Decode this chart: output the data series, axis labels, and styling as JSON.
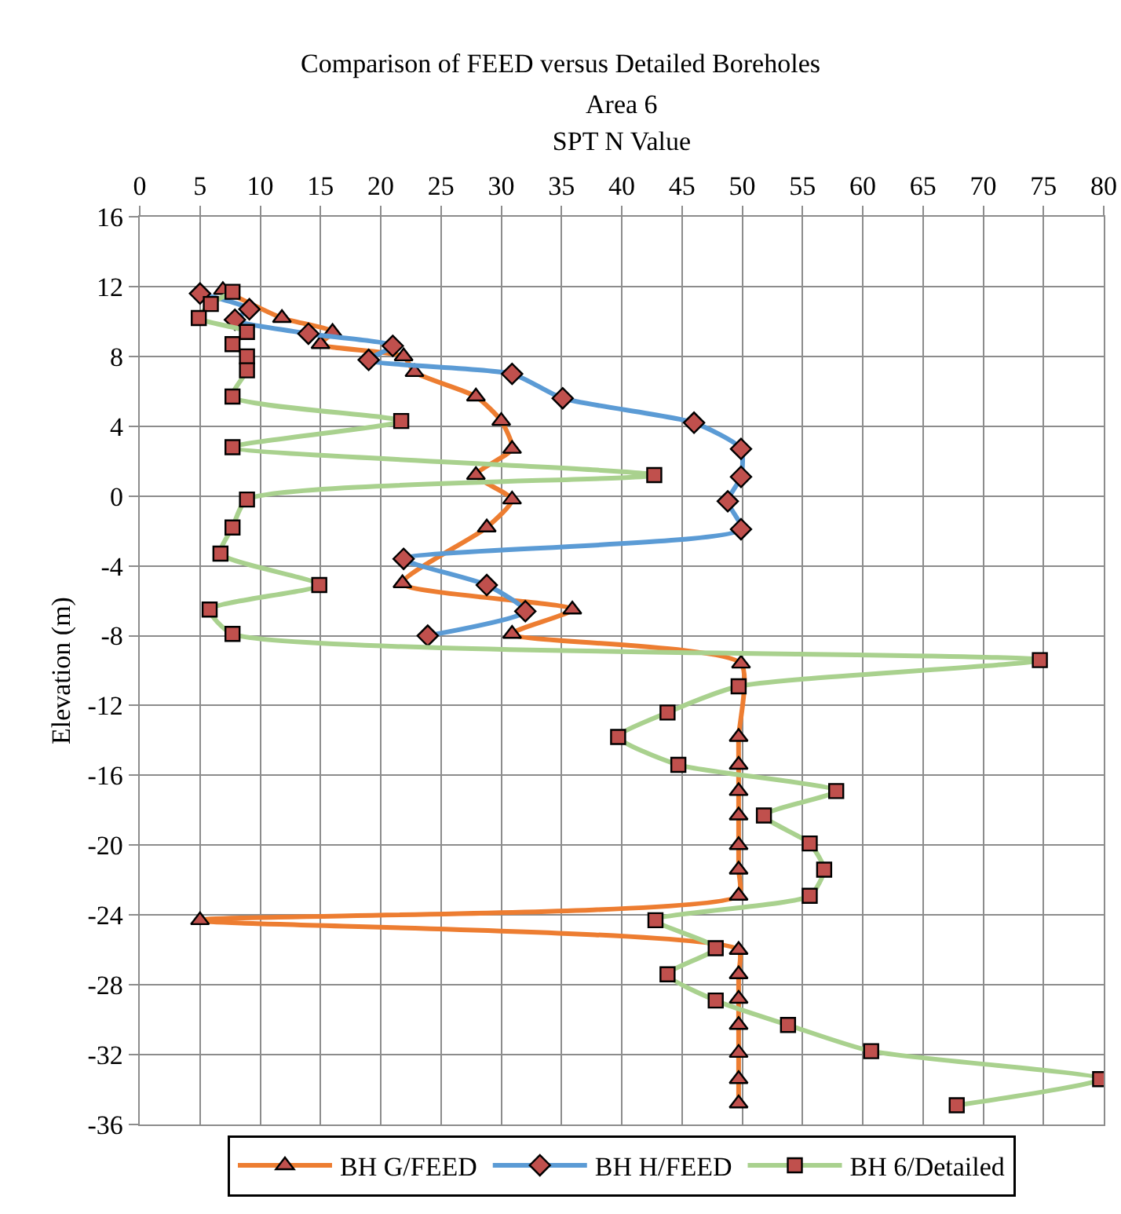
{
  "chart_data": {
    "type": "line",
    "title": "Comparison of FEED versus Detailed Boreholes",
    "subtitle": "Area 6",
    "xlabel": "SPT N Value",
    "ylabel": "Elevation (m)",
    "xlim": [
      0,
      80
    ],
    "xticks": [
      0,
      5,
      10,
      15,
      20,
      25,
      30,
      35,
      40,
      45,
      50,
      55,
      60,
      65,
      70,
      75,
      80
    ],
    "ylim": [
      -36,
      16
    ],
    "yticks": [
      -36,
      -32,
      -28,
      -24,
      -20,
      -16,
      -12,
      -8,
      -4,
      0,
      4,
      8,
      12,
      16
    ],
    "grid": true,
    "legend": "bottom",
    "series": [
      {
        "name": "BH G/FEED",
        "color": "#ed7d31",
        "marker": "triangle",
        "x": [
          6.9,
          11.8,
          16.0,
          15.0,
          21.9,
          22.8,
          27.9,
          30.0,
          30.9,
          27.9,
          30.9,
          28.8,
          21.8,
          35.9,
          30.9,
          49.9,
          49.7,
          49.7,
          49.7,
          49.7,
          49.7,
          49.7,
          49.7,
          5.0,
          49.7,
          49.7,
          49.7,
          49.7,
          49.7,
          49.7,
          49.7
        ],
        "values": [
          11.8,
          10.2,
          9.4,
          8.7,
          8.0,
          7.1,
          5.7,
          4.3,
          2.7,
          1.2,
          -0.2,
          -1.8,
          -5.0,
          -6.5,
          -7.9,
          -9.6,
          -13.8,
          -15.4,
          -16.9,
          -18.3,
          -20.0,
          -21.4,
          -22.9,
          -24.3,
          -26.0,
          -27.4,
          -28.8,
          -30.3,
          -31.9,
          -33.4,
          -34.8
        ]
      },
      {
        "name": "BH H/FEED",
        "color": "#5b9bd5",
        "marker": "diamond",
        "x": [
          5.0,
          9.1,
          7.9,
          14.0,
          21.0,
          19.0,
          30.9,
          35.1,
          46.0,
          49.9,
          49.9,
          48.8,
          49.9,
          21.9,
          28.8,
          32.0,
          23.9
        ],
        "values": [
          11.6,
          10.7,
          10.1,
          9.3,
          8.6,
          7.8,
          7.0,
          5.6,
          4.2,
          2.7,
          1.1,
          -0.3,
          -1.9,
          -3.6,
          -5.1,
          -6.6,
          -8.0
        ]
      },
      {
        "name": "BH 6/Detailed",
        "color": "#a9d18e",
        "marker": "square",
        "x": [
          7.7,
          5.9,
          4.9,
          8.9,
          7.7,
          8.9,
          8.9,
          7.7,
          21.7,
          7.7,
          42.7,
          8.9,
          7.7,
          6.7,
          14.9,
          5.8,
          7.7,
          74.7,
          49.7,
          43.8,
          39.7,
          44.7,
          57.8,
          51.8,
          55.6,
          56.8,
          55.6,
          42.8,
          47.8,
          43.8,
          47.8,
          53.8,
          60.7,
          79.7,
          67.8
        ],
        "values": [
          11.7,
          11.0,
          10.2,
          9.4,
          8.7,
          8.0,
          7.2,
          5.7,
          4.3,
          2.8,
          1.2,
          -0.2,
          -1.8,
          -3.3,
          -5.1,
          -6.5,
          -7.9,
          -9.4,
          -10.9,
          -12.4,
          -13.8,
          -15.4,
          -16.9,
          -18.3,
          -19.9,
          -21.4,
          -22.9,
          -24.3,
          -25.9,
          -27.4,
          -28.9,
          -30.3,
          -31.8,
          -33.4,
          -34.9
        ]
      }
    ]
  }
}
